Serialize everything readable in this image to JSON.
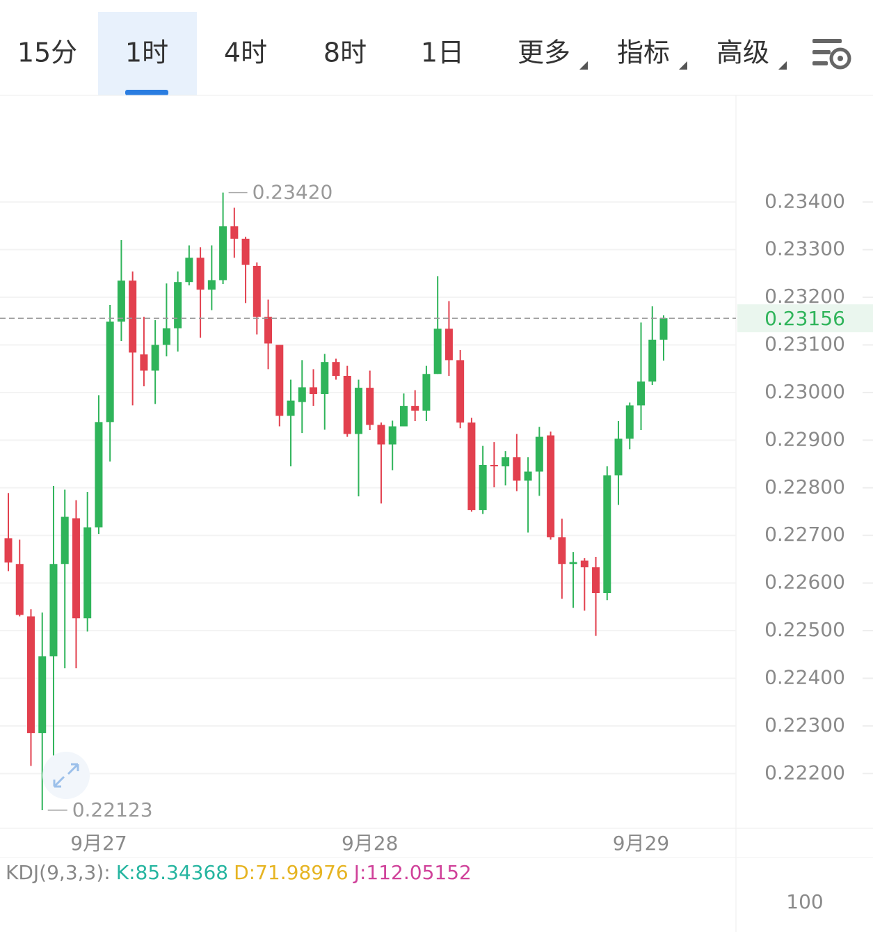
{
  "tabs": [
    "15分",
    "1时",
    "4时",
    "8时",
    "1日",
    "更多",
    "指标",
    "高级"
  ],
  "active_tab": 1,
  "chart_data": {
    "type": "candlestick",
    "categories": [
      null,
      null,
      null,
      null,
      null,
      null,
      null,
      null,
      "9月27",
      null,
      null,
      null,
      null,
      null,
      null,
      null,
      null,
      null,
      null,
      null,
      null,
      null,
      null,
      null,
      null,
      null,
      null,
      null,
      null,
      null,
      null,
      null,
      "9月28",
      null,
      null,
      null,
      null,
      null,
      null,
      null,
      null,
      null,
      null,
      null,
      null,
      null,
      null,
      null,
      null,
      null,
      null,
      null,
      null,
      null,
      null,
      null,
      "9月29",
      null,
      null
    ],
    "open": [
      0.22694,
      0.2264,
      0.2253,
      0.22285,
      0.22446,
      0.2264,
      0.22736,
      0.22526,
      0.22717,
      0.22938,
      0.23149,
      0.23235,
      0.2308,
      0.23046,
      0.231,
      0.23135,
      0.23232,
      0.23283,
      0.23216,
      0.23236,
      0.23349,
      0.23323,
      0.23266,
      0.23159,
      0.231,
      0.22951,
      0.2298,
      0.23011,
      0.22997,
      0.23064,
      0.23035,
      0.22913,
      0.2301,
      0.22932,
      0.22891,
      0.22929,
      0.22972,
      0.22962,
      0.23039,
      0.23134,
      0.23068,
      0.22937,
      0.22753,
      0.22848,
      0.22845,
      0.22864,
      0.22815,
      0.22834,
      0.2291,
      0.22696,
      0.2264,
      0.22647,
      0.22633,
      0.22579,
      0.22826,
      0.22903,
      0.22973,
      0.23023,
      0.23111
    ],
    "high": [
      0.22789,
      0.22691,
      0.22545,
      0.22538,
      0.22804,
      0.22796,
      0.22774,
      0.22791,
      0.22994,
      0.23184,
      0.2332,
      0.23254,
      0.23159,
      0.23152,
      0.23229,
      0.23254,
      0.23309,
      0.23305,
      0.23309,
      0.2342,
      0.23388,
      0.23327,
      0.23273,
      0.23195,
      0.231,
      0.23027,
      0.23068,
      0.23049,
      0.23081,
      0.23071,
      0.23056,
      0.23027,
      0.23046,
      0.22937,
      0.22941,
      0.22998,
      0.23005,
      0.23056,
      0.23244,
      0.23192,
      0.23089,
      0.22947,
      0.22888,
      0.22896,
      0.22877,
      0.22913,
      0.22864,
      0.22928,
      0.22918,
      0.22735,
      0.22665,
      0.22652,
      0.22655,
      0.22845,
      0.2294,
      0.22979,
      0.23147,
      0.23181,
      0.23162
    ],
    "low": [
      0.22625,
      0.2253,
      0.22216,
      0.22123,
      0.22161,
      0.22421,
      0.22421,
      0.22498,
      0.22703,
      0.22855,
      0.23108,
      0.22973,
      0.23013,
      0.22976,
      0.23076,
      0.23086,
      0.23225,
      0.23115,
      0.23173,
      0.23228,
      0.23283,
      0.23188,
      0.23122,
      0.23049,
      0.22929,
      0.22845,
      0.22915,
      0.22972,
      0.22922,
      0.23027,
      0.22907,
      0.22782,
      0.22921,
      0.22767,
      0.22837,
      0.22929,
      0.2294,
      0.2294,
      0.23039,
      0.23035,
      0.22925,
      0.2275,
      0.22745,
      0.22801,
      0.22805,
      0.22793,
      0.22706,
      0.22783,
      0.22691,
      0.22567,
      0.22548,
      0.22542,
      0.22489,
      0.22564,
      0.22764,
      0.22881,
      0.22921,
      0.23016,
      0.23067
    ],
    "close": [
      0.22643,
      0.22533,
      0.22285,
      0.22446,
      0.2264,
      0.22739,
      0.22526,
      0.22717,
      0.22938,
      0.23149,
      0.23235,
      0.23084,
      0.23046,
      0.231,
      0.23135,
      0.23232,
      0.23283,
      0.23216,
      0.23236,
      0.23349,
      0.23323,
      0.23268,
      0.23159,
      0.23103,
      0.22951,
      0.22983,
      0.23011,
      0.22997,
      0.23064,
      0.23035,
      0.22913,
      0.2301,
      0.22932,
      0.22891,
      0.22929,
      0.22972,
      0.22962,
      0.23039,
      0.23134,
      0.23068,
      0.22937,
      0.22753,
      0.22848,
      0.22845,
      0.22864,
      0.22815,
      0.22834,
      0.22907,
      0.22696,
      0.2264,
      0.22644,
      0.22633,
      0.22579,
      0.22826,
      0.22903,
      0.22973,
      0.23023,
      0.23111,
      0.23156
    ],
    "up_color": "#2fb45a",
    "down_color": "#e2404e",
    "ylim": [
      0.22085,
      0.23624
    ],
    "yticks": [
      {
        "value": 0.234,
        "label": "0.23400"
      },
      {
        "value": 0.233,
        "label": "0.23300"
      },
      {
        "value": 0.232,
        "label": "0.23200"
      },
      {
        "value": 0.231,
        "label": "0.23100"
      },
      {
        "value": 0.23,
        "label": "0.23000"
      },
      {
        "value": 0.229,
        "label": "0.22900"
      },
      {
        "value": 0.228,
        "label": "0.22800"
      },
      {
        "value": 0.227,
        "label": "0.22700"
      },
      {
        "value": 0.226,
        "label": "0.22600"
      },
      {
        "value": 0.225,
        "label": "0.22500"
      },
      {
        "value": 0.224,
        "label": "0.22400"
      },
      {
        "value": 0.223,
        "label": "0.22300"
      },
      {
        "value": 0.222,
        "label": "0.22200"
      }
    ],
    "grid": true,
    "last_price": {
      "value": 0.23156,
      "label": "0.23156"
    },
    "max_label": {
      "value": 0.2342,
      "label": "0.23420"
    },
    "min_label": {
      "value": 0.22123,
      "label": "0.22123"
    }
  },
  "indicator": {
    "name": "KDJ(9,3,3):",
    "k": "K:85.34368",
    "d": "D:71.98976",
    "j": "J:112.05152",
    "yticks": [
      100
    ]
  }
}
